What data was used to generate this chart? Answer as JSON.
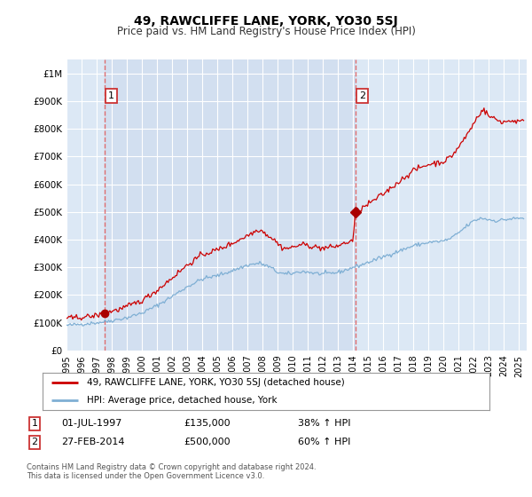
{
  "title": "49, RAWCLIFFE LANE, YORK, YO30 5SJ",
  "subtitle": "Price paid vs. HM Land Registry's House Price Index (HPI)",
  "ylim": [
    0,
    1050000
  ],
  "xlim_start": 1995.0,
  "xlim_end": 2025.5,
  "sale1_date": 1997.5,
  "sale1_price": 135000,
  "sale1_label": "1",
  "sale2_date": 2014.15,
  "sale2_price": 500000,
  "sale2_label": "2",
  "legend_line1": "49, RAWCLIFFE LANE, YORK, YO30 5SJ (detached house)",
  "legend_line2": "HPI: Average price, detached house, York",
  "footnote1": "Contains HM Land Registry data © Crown copyright and database right 2024.",
  "footnote2": "This data is licensed under the Open Government Licence v3.0.",
  "line_color_red": "#cc0000",
  "line_color_blue": "#7fafd4",
  "plot_bg": "#dce8f5",
  "plot_bg_highlight": "#ccdaed",
  "grid_color": "#ffffff",
  "dashed_color": "#e06060",
  "marker_color": "#aa0000",
  "box_color": "#cc3333",
  "yticks": [
    0,
    100000,
    200000,
    300000,
    400000,
    500000,
    600000,
    700000,
    800000,
    900000,
    1000000
  ],
  "ytick_labels": [
    "£0",
    "£100K",
    "£200K",
    "£300K",
    "£400K",
    "£500K",
    "£600K",
    "£700K",
    "£800K",
    "£900K",
    "£1M"
  ]
}
